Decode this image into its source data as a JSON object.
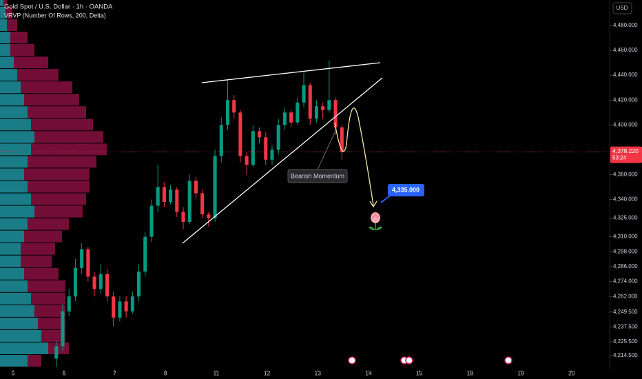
{
  "chart_data": {
    "type": "candlestick",
    "title": "Gold Spot / U.S. Dollar · 1h · OANDA",
    "subtitle": "VRVP (Number Of Rows, 200, Delta)",
    "currency": "USD",
    "up_color": "#089981",
    "down_color": "#f23645",
    "x": [
      0.85,
      0.975,
      1.1,
      1.225,
      1.35,
      1.475,
      1.6,
      1.725,
      1.85,
      1.975,
      2.1,
      2.225,
      2.35,
      2.475,
      2.6,
      2.725,
      2.85,
      2.975,
      3.1,
      3.225,
      3.35,
      3.475,
      3.6,
      3.725,
      3.85,
      3.975,
      4.1,
      4.225,
      4.35,
      4.475,
      4.6,
      4.725,
      4.85,
      4.975,
      5.1,
      5.225,
      5.35,
      5.475,
      5.6,
      5.725,
      5.85,
      5.975,
      6.1,
      6.225,
      6.35,
      6.475
    ],
    "open": [
      4212,
      4222,
      4250,
      4262,
      4285,
      4300,
      4278,
      4268,
      4280,
      4262,
      4245,
      4258,
      4250,
      4262,
      4282,
      4310,
      4335,
      4350,
      4338,
      4348,
      4330,
      4322,
      4355,
      4345,
      4328,
      4325,
      4375,
      4400,
      4420,
      4410,
      4375,
      4368,
      4395,
      4390,
      4372,
      4380,
      4400,
      4410,
      4402,
      4418,
      4432,
      4405,
      4415,
      4412,
      4420,
      4398
    ],
    "high": [
      4226,
      4256,
      4268,
      4292,
      4305,
      4302,
      4282,
      4288,
      4284,
      4266,
      4262,
      4262,
      4266,
      4288,
      4314,
      4340,
      4368,
      4354,
      4352,
      4350,
      4334,
      4360,
      4358,
      4348,
      4330,
      4380,
      4406,
      4436,
      4424,
      4412,
      4378,
      4400,
      4398,
      4394,
      4384,
      4405,
      4414,
      4412,
      4422,
      4442,
      4434,
      4420,
      4418,
      4452,
      4422,
      4400
    ],
    "low": [
      4205,
      4218,
      4246,
      4258,
      4280,
      4274,
      4262,
      4264,
      4258,
      4238,
      4242,
      4245,
      4248,
      4258,
      4278,
      4306,
      4330,
      4334,
      4336,
      4326,
      4316,
      4320,
      4340,
      4325,
      4318,
      4322,
      4370,
      4396,
      4405,
      4370,
      4360,
      4366,
      4385,
      4368,
      4368,
      4376,
      4396,
      4398,
      4400,
      4414,
      4400,
      4402,
      4405,
      4410,
      4392,
      4372
    ],
    "close": [
      4222,
      4250,
      4262,
      4285,
      4300,
      4278,
      4268,
      4280,
      4262,
      4245,
      4258,
      4250,
      4262,
      4282,
      4310,
      4335,
      4350,
      4338,
      4348,
      4330,
      4322,
      4355,
      4345,
      4328,
      4325,
      4375,
      4400,
      4420,
      4410,
      4375,
      4368,
      4395,
      4390,
      4372,
      4380,
      4400,
      4410,
      4402,
      4418,
      4432,
      4405,
      4415,
      4412,
      4420,
      4398,
      4378.22
    ],
    "last_price": {
      "value": 4378.22,
      "label": "4,378.220"
    },
    "countdown": "53:24",
    "xlim": [
      -0.26,
      11.75
    ],
    "ylim": [
      4202.8,
      4500.5
    ],
    "xticks": [
      {
        "value": 0,
        "label": "5"
      },
      {
        "value": 1,
        "label": "6"
      },
      {
        "value": 2,
        "label": "7"
      },
      {
        "value": 3,
        "label": "8"
      },
      {
        "value": 4,
        "label": "11"
      },
      {
        "value": 5,
        "label": "12"
      },
      {
        "value": 6,
        "label": "13"
      },
      {
        "value": 7,
        "label": "14"
      },
      {
        "value": 8,
        "label": "15"
      },
      {
        "value": 9,
        "label": "18"
      },
      {
        "value": 10,
        "label": "19"
      },
      {
        "value": 11,
        "label": "20"
      }
    ],
    "yticks": [
      {
        "value": 4480,
        "label": "4,480.000"
      },
      {
        "value": 4460,
        "label": "4,460.000"
      },
      {
        "value": 4440,
        "label": "4,440.000"
      },
      {
        "value": 4420,
        "label": "4,420.000"
      },
      {
        "value": 4400,
        "label": "4,400.000"
      },
      {
        "value": 4360,
        "label": "4,360.000"
      },
      {
        "value": 4340,
        "label": "4,340.000"
      },
      {
        "value": 4325,
        "label": "4,325.000"
      },
      {
        "value": 4310,
        "label": "4,310.000"
      },
      {
        "value": 4298,
        "label": "4,298.000"
      },
      {
        "value": 4286,
        "label": "4,286.000"
      },
      {
        "value": 4274,
        "label": "4,274.000"
      },
      {
        "value": 4262,
        "label": "4,262.000"
      },
      {
        "value": 4249.5,
        "label": "4,249.500"
      },
      {
        "value": 4237.5,
        "label": "4,237.500"
      },
      {
        "value": 4225.5,
        "label": "4,225.500"
      },
      {
        "value": 4214.5,
        "label": "4,214.500"
      }
    ],
    "volume_profile": {
      "bins": [
        4205,
        4215,
        4225,
        4235,
        4245,
        4255,
        4265,
        4275,
        4285,
        4295,
        4305,
        4315,
        4325,
        4335,
        4345,
        4355,
        4365,
        4375,
        4385,
        4395,
        4405,
        4415,
        4425,
        4435,
        4445,
        4455,
        4465,
        4475,
        4485,
        4495,
        4505
      ],
      "buy": [
        40,
        70,
        60,
        55,
        50,
        45,
        40,
        35,
        30,
        30,
        35,
        40,
        50,
        45,
        40,
        35,
        40,
        45,
        50,
        45,
        40,
        35,
        30,
        25,
        20,
        15,
        15,
        10,
        8,
        5
      ],
      "sell": [
        20,
        30,
        35,
        40,
        45,
        50,
        55,
        50,
        45,
        50,
        55,
        60,
        70,
        80,
        90,
        95,
        100,
        110,
        100,
        90,
        85,
        80,
        75,
        60,
        50,
        35,
        25,
        15,
        10,
        5
      ],
      "buy_color": "#22a6b3",
      "sell_color": "#c2185b"
    },
    "annotations": {
      "pattern_label": "Bearish Momentum",
      "target": {
        "value": 4335,
        "label": "4,335.000"
      }
    }
  }
}
